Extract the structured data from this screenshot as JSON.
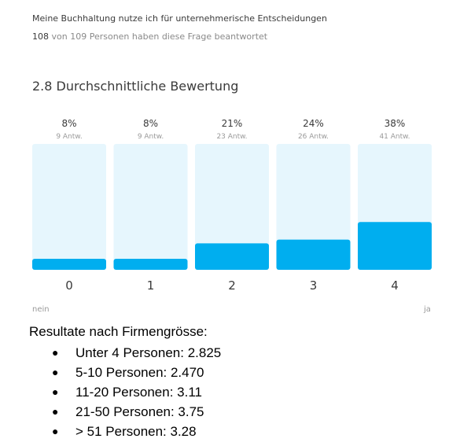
{
  "survey": {
    "question": "Meine Buchhaltung nutze ich für unternehmerische Entscheidungen",
    "answered_count": "108",
    "answered_text": " von 109 Personen haben diese Frage beantwortet",
    "average_label": "2.8 Durchschnittliche Bewertung",
    "scale_low": "nein",
    "scale_high": "ja"
  },
  "chart_data": {
    "type": "bar",
    "categories": [
      "0",
      "1",
      "2",
      "3",
      "4"
    ],
    "values": [
      8,
      8,
      21,
      24,
      38
    ],
    "percent_labels": [
      "8%",
      "8%",
      "21%",
      "24%",
      "38%"
    ],
    "count_labels": [
      "9 Antw.",
      "9 Antw.",
      "23 Antw.",
      "26 Antw.",
      "41 Antw."
    ],
    "ylim": [
      0,
      100
    ],
    "colors": {
      "bar": "#00aeef",
      "track": "#e6f6fd",
      "value_text": "#3a3a3a",
      "count_text": "#9a9a9a",
      "axis_text": "#3a3a3a"
    }
  },
  "results": {
    "title": "Resultate nach Firmengrösse:",
    "items": [
      "Unter 4 Personen: 2.825",
      "5-10 Personen: 2.470",
      "11-20 Personen: 3.11",
      "21-50 Personen: 3.75",
      "> 51 Personen: 3.28"
    ]
  }
}
